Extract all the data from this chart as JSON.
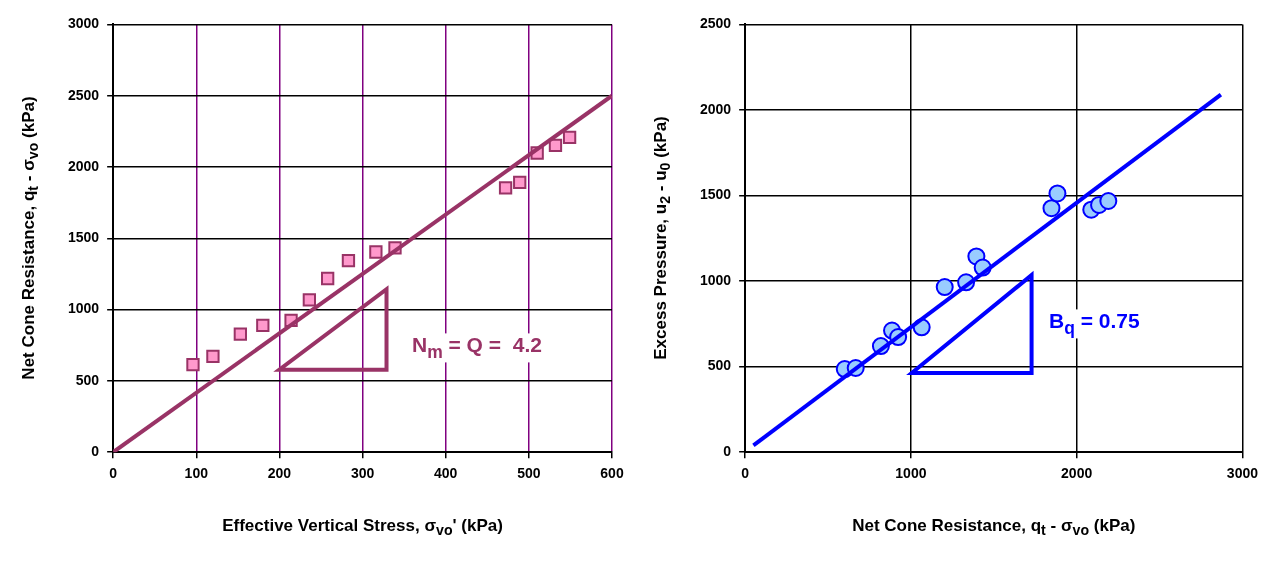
{
  "chart_data": [
    {
      "type": "scatter",
      "xlabel": "Effective Vertical Stress, σ$_{vo}$' (kPa)",
      "ylabel": "Net Cone Resistance, q$_{t}$ - σ$_{vo}$ (kPa)",
      "xlim": [
        0,
        600
      ],
      "ylim": [
        0,
        3000
      ],
      "xticks": [
        0,
        100,
        200,
        300,
        400,
        500,
        600
      ],
      "yticks": [
        0,
        500,
        1000,
        1500,
        2000,
        2500,
        3000
      ],
      "grid": true,
      "series": [
        {
          "color": "#ff99cc",
          "marker": "square",
          "x": [
            96,
            120,
            153,
            180,
            214,
            236,
            258,
            283,
            316,
            339,
            472,
            489,
            510,
            532,
            549
          ],
          "values": [
            614,
            672,
            828,
            890,
            924,
            1068,
            1218,
            1344,
            1404,
            1433,
            1853,
            1892,
            2098,
            2151,
            2208
          ]
        },
        {
          "type": "line",
          "color": "#993366",
          "marker": "none",
          "x": [
            0,
            600
          ],
          "values": [
            0,
            2500
          ]
        }
      ],
      "annotations": [
        "N$_{m}$ = Q =  4.2"
      ]
    },
    {
      "type": "scatter",
      "xlabel": "Net Cone Resistance, q$_{t}$ - σ$_{vo}$ (kPa)",
      "ylabel": "Excess Pressure, u$_{2}$ - u$_{0}$ (kPa)",
      "xlim": [
        0,
        3000
      ],
      "ylim": [
        0,
        2500
      ],
      "xticks": [
        0,
        1000,
        2000,
        3000
      ],
      "yticks": [
        0,
        500,
        1000,
        1500,
        2000,
        2500
      ],
      "grid": true,
      "series": [
        {
          "color": "#99ccff",
          "marker": "circle",
          "x": [
            601,
            667,
            819,
            886,
            923,
            1065,
            1204,
            1333,
            1395,
            1433,
            1848,
            1884,
            2088,
            2135,
            2191
          ],
          "values": [
            486,
            492,
            620,
            711,
            673,
            730,
            965,
            993,
            1144,
            1079,
            1426,
            1512,
            1417,
            1445,
            1468
          ]
        },
        {
          "type": "line",
          "color": "#0000ff",
          "marker": "none",
          "x": [
            50,
            2870
          ],
          "values": [
            40,
            2090
          ]
        }
      ],
      "annotations": [
        "B$_{q}$ = 0.75"
      ]
    }
  ]
}
